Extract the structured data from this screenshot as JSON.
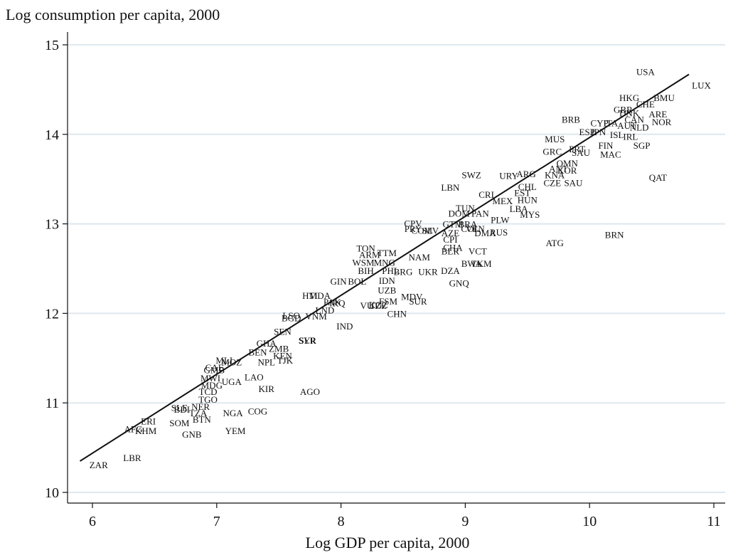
{
  "chart_data": {
    "type": "scatter",
    "title": "",
    "ylabel": "Log consumption per capita, 2000",
    "xlabel": "Log GDP per capita, 2000",
    "xlim": [
      5.8,
      11.1
    ],
    "ylim": [
      9.9,
      15.3
    ],
    "xticks": [
      6,
      7,
      8,
      9,
      10,
      11
    ],
    "yticks": [
      10,
      11,
      12,
      13,
      14,
      15
    ],
    "grid": "horizontal",
    "fit_line": {
      "x": [
        5.9,
        10.8
      ],
      "y": [
        10.35,
        14.67
      ]
    },
    "points": [
      {
        "label": "USA",
        "x": 10.45,
        "y": 14.7
      },
      {
        "label": "LUX",
        "x": 10.9,
        "y": 14.55
      },
      {
        "label": "HKG",
        "x": 10.32,
        "y": 14.41
      },
      {
        "label": "BMU",
        "x": 10.6,
        "y": 14.41
      },
      {
        "label": "CHE",
        "x": 10.45,
        "y": 14.34
      },
      {
        "label": "GBR",
        "x": 10.27,
        "y": 14.28
      },
      {
        "label": "DNK",
        "x": 10.32,
        "y": 14.24
      },
      {
        "label": "ARE",
        "x": 10.55,
        "y": 14.23
      },
      {
        "label": "CAN",
        "x": 10.36,
        "y": 14.17
      },
      {
        "label": "NOR",
        "x": 10.58,
        "y": 14.14
      },
      {
        "label": "BRB",
        "x": 9.85,
        "y": 14.17
      },
      {
        "label": "CYP",
        "x": 10.08,
        "y": 14.13
      },
      {
        "label": "ITA",
        "x": 10.17,
        "y": 14.13
      },
      {
        "label": "AUT",
        "x": 10.3,
        "y": 14.1
      },
      {
        "label": "NLD",
        "x": 10.4,
        "y": 14.08
      },
      {
        "label": "ESP",
        "x": 9.98,
        "y": 14.03
      },
      {
        "label": "JPN",
        "x": 10.07,
        "y": 14.03
      },
      {
        "label": "ISL",
        "x": 10.22,
        "y": 14.0
      },
      {
        "label": "IRL",
        "x": 10.33,
        "y": 13.98
      },
      {
        "label": "FIN",
        "x": 10.13,
        "y": 13.88
      },
      {
        "label": "MUS",
        "x": 9.72,
        "y": 13.95
      },
      {
        "label": "SGP",
        "x": 10.42,
        "y": 13.88
      },
      {
        "label": "GRC",
        "x": 9.7,
        "y": 13.81
      },
      {
        "label": "PRT",
        "x": 9.9,
        "y": 13.84
      },
      {
        "label": "SAU",
        "x": 9.93,
        "y": 13.8
      },
      {
        "label": "MAC",
        "x": 10.17,
        "y": 13.78
      },
      {
        "label": "QAT",
        "x": 10.55,
        "y": 13.52
      },
      {
        "label": "OMN",
        "x": 9.82,
        "y": 13.68
      },
      {
        "label": "KOR",
        "x": 9.82,
        "y": 13.6
      },
      {
        "label": "ANT",
        "x": 9.75,
        "y": 13.62
      },
      {
        "label": "KNA",
        "x": 9.72,
        "y": 13.55
      },
      {
        "label": "SWZ",
        "x": 9.05,
        "y": 13.55
      },
      {
        "label": "URY",
        "x": 9.35,
        "y": 13.54
      },
      {
        "label": "ARG",
        "x": 9.49,
        "y": 13.56
      },
      {
        "label": "CZE",
        "x": 9.7,
        "y": 13.46
      },
      {
        "label": "SAU",
        "x": 9.87,
        "y": 13.46
      },
      {
        "label": "CHL",
        "x": 9.5,
        "y": 13.42
      },
      {
        "label": "LBN",
        "x": 8.88,
        "y": 13.41
      },
      {
        "label": "CRI",
        "x": 9.17,
        "y": 13.33
      },
      {
        "label": "EST",
        "x": 9.46,
        "y": 13.35
      },
      {
        "label": "HUN",
        "x": 9.5,
        "y": 13.27
      },
      {
        "label": "MEX",
        "x": 9.3,
        "y": 13.26
      },
      {
        "label": "TUN",
        "x": 9.0,
        "y": 13.18
      },
      {
        "label": "LBA",
        "x": 9.43,
        "y": 13.17
      },
      {
        "label": "MYS",
        "x": 9.52,
        "y": 13.11
      },
      {
        "label": "DOM",
        "x": 8.95,
        "y": 13.12
      },
      {
        "label": "PAN",
        "x": 9.12,
        "y": 13.12
      },
      {
        "label": "PLW",
        "x": 9.28,
        "y": 13.05
      },
      {
        "label": "GTM",
        "x": 8.9,
        "y": 13.0
      },
      {
        "label": "BRA",
        "x": 9.02,
        "y": 13.0
      },
      {
        "label": "COL",
        "x": 9.04,
        "y": 12.95
      },
      {
        "label": "VEN",
        "x": 9.08,
        "y": 12.95
      },
      {
        "label": "CPV",
        "x": 8.58,
        "y": 13.01
      },
      {
        "label": "DMA",
        "x": 9.16,
        "y": 12.9
      },
      {
        "label": "RUS",
        "x": 9.27,
        "y": 12.91
      },
      {
        "label": "BRN",
        "x": 10.2,
        "y": 12.88
      },
      {
        "label": "ATG",
        "x": 9.72,
        "y": 12.79
      },
      {
        "label": "PRY",
        "x": 8.58,
        "y": 12.95
      },
      {
        "label": "AZE",
        "x": 8.88,
        "y": 12.9
      },
      {
        "label": "COM",
        "x": 8.65,
        "y": 12.93
      },
      {
        "label": "SLV",
        "x": 8.72,
        "y": 12.93
      },
      {
        "label": "CPI",
        "x": 8.88,
        "y": 12.83
      },
      {
        "label": "CHA",
        "x": 8.9,
        "y": 12.74
      },
      {
        "label": "BLR",
        "x": 8.88,
        "y": 12.7
      },
      {
        "label": "TON",
        "x": 8.2,
        "y": 12.73
      },
      {
        "label": "ARM",
        "x": 8.23,
        "y": 12.66
      },
      {
        "label": "TTM",
        "x": 8.37,
        "y": 12.68
      },
      {
        "label": "NAM",
        "x": 8.63,
        "y": 12.63
      },
      {
        "label": "VCT",
        "x": 9.1,
        "y": 12.7
      },
      {
        "label": "WSM",
        "x": 8.18,
        "y": 12.57
      },
      {
        "label": "MNG",
        "x": 8.35,
        "y": 12.57
      },
      {
        "label": "BWA",
        "x": 9.05,
        "y": 12.56
      },
      {
        "label": "TKM",
        "x": 9.13,
        "y": 12.56
      },
      {
        "label": "BIH",
        "x": 8.2,
        "y": 12.48
      },
      {
        "label": "PHL",
        "x": 8.4,
        "y": 12.48
      },
      {
        "label": "BRG",
        "x": 8.5,
        "y": 12.47
      },
      {
        "label": "UKR",
        "x": 8.7,
        "y": 12.47
      },
      {
        "label": "DZA",
        "x": 8.88,
        "y": 12.48
      },
      {
        "label": "GIN",
        "x": 7.98,
        "y": 12.36
      },
      {
        "label": "BOL",
        "x": 8.13,
        "y": 12.36
      },
      {
        "label": "IDN",
        "x": 8.37,
        "y": 12.37
      },
      {
        "label": "GNQ",
        "x": 8.95,
        "y": 12.34
      },
      {
        "label": "UZB",
        "x": 8.37,
        "y": 12.26
      },
      {
        "label": "HTI",
        "x": 7.75,
        "y": 12.2
      },
      {
        "label": "MDA",
        "x": 7.83,
        "y": 12.2
      },
      {
        "label": "MDV",
        "x": 8.57,
        "y": 12.19
      },
      {
        "label": "SUR",
        "x": 8.62,
        "y": 12.14
      },
      {
        "label": "FSM",
        "x": 8.38,
        "y": 12.14
      },
      {
        "label": "KGZ",
        "x": 8.3,
        "y": 12.1
      },
      {
        "label": "IRQ",
        "x": 7.97,
        "y": 12.12
      },
      {
        "label": "PAK",
        "x": 7.93,
        "y": 12.13
      },
      {
        "label": "VUT",
        "x": 8.23,
        "y": 12.09
      },
      {
        "label": "TZE",
        "x": 8.3,
        "y": 12.09
      },
      {
        "label": "CHN",
        "x": 8.45,
        "y": 12.0
      },
      {
        "label": "LND",
        "x": 7.87,
        "y": 12.04
      },
      {
        "label": "SEN",
        "x": 7.53,
        "y": 11.8
      },
      {
        "label": "SLR",
        "x": 7.73,
        "y": 11.7
      },
      {
        "label": "SYR",
        "x": 7.73,
        "y": 11.7
      },
      {
        "label": "IND",
        "x": 8.03,
        "y": 11.86
      },
      {
        "label": "LSO",
        "x": 7.6,
        "y": 11.98
      },
      {
        "label": "VNM",
        "x": 7.8,
        "y": 11.97
      },
      {
        "label": "BGD",
        "x": 7.6,
        "y": 11.95
      },
      {
        "label": "GHA",
        "x": 7.4,
        "y": 11.67
      },
      {
        "label": "ZMB",
        "x": 7.5,
        "y": 11.61
      },
      {
        "label": "KEN",
        "x": 7.53,
        "y": 11.53
      },
      {
        "label": "BEN",
        "x": 7.33,
        "y": 11.57
      },
      {
        "label": "NPL",
        "x": 7.4,
        "y": 11.46
      },
      {
        "label": "TJK",
        "x": 7.55,
        "y": 11.48
      },
      {
        "label": "MOZ",
        "x": 7.12,
        "y": 11.46
      },
      {
        "label": "MLI",
        "x": 7.06,
        "y": 11.48
      },
      {
        "label": "CAF",
        "x": 6.98,
        "y": 11.4
      },
      {
        "label": "GMB",
        "x": 6.98,
        "y": 11.37
      },
      {
        "label": "UGA",
        "x": 7.12,
        "y": 11.24
      },
      {
        "label": "LAO",
        "x": 7.3,
        "y": 11.29
      },
      {
        "label": "KIR",
        "x": 7.4,
        "y": 11.16
      },
      {
        "label": "AGO",
        "x": 7.75,
        "y": 11.13
      },
      {
        "label": "MWI",
        "x": 6.95,
        "y": 11.28
      },
      {
        "label": "MDG",
        "x": 6.96,
        "y": 11.2
      },
      {
        "label": "TCD",
        "x": 6.93,
        "y": 11.13
      },
      {
        "label": "TGO",
        "x": 6.93,
        "y": 11.04
      },
      {
        "label": "NER",
        "x": 6.87,
        "y": 10.96
      },
      {
        "label": "SLE",
        "x": 6.7,
        "y": 10.95
      },
      {
        "label": "BDI",
        "x": 6.72,
        "y": 10.93
      },
      {
        "label": "TZA",
        "x": 6.85,
        "y": 10.89
      },
      {
        "label": "NGA",
        "x": 7.13,
        "y": 10.89
      },
      {
        "label": "COG",
        "x": 7.33,
        "y": 10.91
      },
      {
        "label": "ERI",
        "x": 6.45,
        "y": 10.8
      },
      {
        "label": "SOM",
        "x": 6.7,
        "y": 10.78
      },
      {
        "label": "BTN",
        "x": 6.88,
        "y": 10.82
      },
      {
        "label": "AFG",
        "x": 6.33,
        "y": 10.71
      },
      {
        "label": "KHM",
        "x": 6.43,
        "y": 10.69
      },
      {
        "label": "GNB",
        "x": 6.8,
        "y": 10.65
      },
      {
        "label": "YEM",
        "x": 7.15,
        "y": 10.69
      },
      {
        "label": "LBR",
        "x": 6.32,
        "y": 10.39
      },
      {
        "label": "ZAR",
        "x": 6.05,
        "y": 10.31
      }
    ]
  }
}
